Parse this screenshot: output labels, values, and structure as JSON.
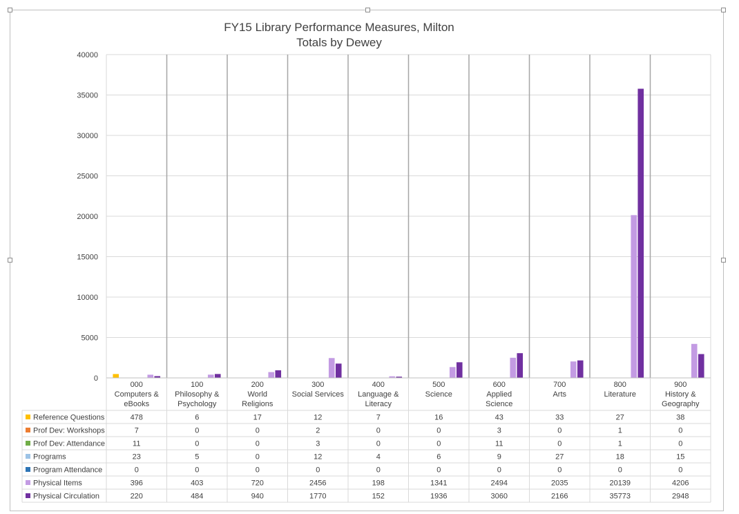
{
  "chart_data": {
    "type": "bar",
    "title": "FY15 Library Performance Measures, Milton",
    "subtitle": "Totals by Dewey",
    "xlabel": "",
    "ylabel": "",
    "ylim": [
      0,
      40000
    ],
    "yticks": [
      0,
      5000,
      10000,
      15000,
      20000,
      25000,
      30000,
      35000,
      40000
    ],
    "grid": true,
    "legend": "data-table-left",
    "categories": [
      [
        "000",
        "Computers &",
        "eBooks"
      ],
      [
        "100",
        "Philosophy &",
        "Psychology"
      ],
      [
        "200",
        "World",
        "Religions"
      ],
      [
        "300",
        "Social Services"
      ],
      [
        "400",
        "Language &",
        "Literacy"
      ],
      [
        "500",
        "Science"
      ],
      [
        "600",
        "Applied",
        "Science"
      ],
      [
        "700",
        "Arts"
      ],
      [
        "800",
        "Literature"
      ],
      [
        "900",
        "History &",
        "Geography"
      ]
    ],
    "series": [
      {
        "name": "Reference Questions",
        "color": "#ffc000",
        "values": [
          478,
          6,
          17,
          12,
          7,
          16,
          43,
          33,
          27,
          38
        ]
      },
      {
        "name": "Prof Dev: Workshops",
        "color": "#ed7d31",
        "values": [
          7,
          0,
          0,
          2,
          0,
          0,
          3,
          0,
          1,
          0
        ]
      },
      {
        "name": "Prof Dev: Attendance",
        "color": "#70ad47",
        "values": [
          11,
          0,
          0,
          3,
          0,
          0,
          11,
          0,
          1,
          0
        ]
      },
      {
        "name": "Programs",
        "color": "#9dc3e6",
        "values": [
          23,
          5,
          0,
          12,
          4,
          6,
          9,
          27,
          18,
          15
        ]
      },
      {
        "name": "Program Attendance",
        "color": "#2e75b6",
        "values": [
          0,
          0,
          0,
          0,
          0,
          0,
          0,
          0,
          0,
          0
        ]
      },
      {
        "name": "Physical Items",
        "color": "#c39be3",
        "values": [
          396,
          403,
          720,
          2456,
          198,
          1341,
          2494,
          2035,
          20139,
          4206
        ]
      },
      {
        "name": "Physical Circulation",
        "color": "#7030a0",
        "values": [
          220,
          484,
          940,
          1770,
          152,
          1936,
          3060,
          2166,
          35773,
          2948
        ]
      }
    ]
  }
}
